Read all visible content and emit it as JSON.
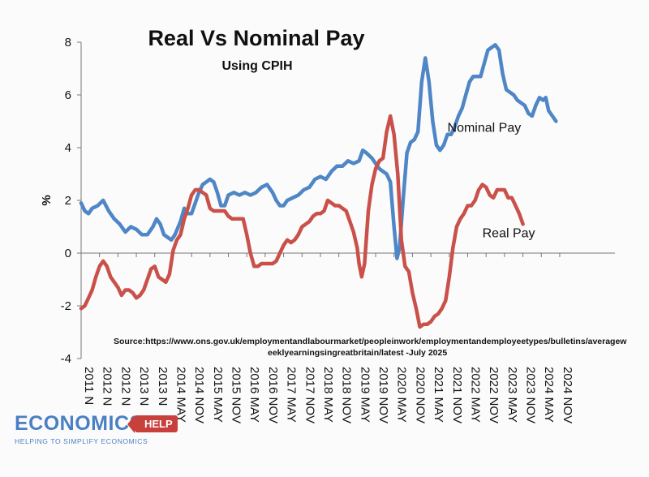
{
  "chart_data": {
    "type": "line",
    "title": "Real Vs Nominal Pay",
    "subtitle": "Using CPIH",
    "ylabel": "%",
    "ylim": [
      -4,
      8
    ],
    "yticks": [
      -4,
      -2,
      0,
      2,
      4,
      6,
      8
    ],
    "xlim": [
      2011.0,
      2025.5
    ],
    "x_tick_labels": [
      {
        "x": 2011.0,
        "label": "2011 N"
      },
      {
        "x": 2011.5,
        "label": "2012 N"
      },
      {
        "x": 2012.0,
        "label": "2012 N"
      },
      {
        "x": 2012.5,
        "label": "2013 N"
      },
      {
        "x": 2013.0,
        "label": "2013 N"
      },
      {
        "x": 2013.5,
        "label": "2014 MAY"
      },
      {
        "x": 2014.0,
        "label": "2014 NOV"
      },
      {
        "x": 2014.5,
        "label": "2015 MAY"
      },
      {
        "x": 2015.0,
        "label": "2015 NOV"
      },
      {
        "x": 2015.5,
        "label": "2016 MAY"
      },
      {
        "x": 2016.0,
        "label": "2016 NOV"
      },
      {
        "x": 2016.5,
        "label": "2017 MAY"
      },
      {
        "x": 2017.0,
        "label": "2017 NOV"
      },
      {
        "x": 2017.5,
        "label": "2018 MAY"
      },
      {
        "x": 2018.0,
        "label": "2018 NOV"
      },
      {
        "x": 2018.5,
        "label": "2019 MAY"
      },
      {
        "x": 2019.0,
        "label": "2019 NOV"
      },
      {
        "x": 2019.5,
        "label": "2020 MAY"
      },
      {
        "x": 2020.0,
        "label": "2020 NOV"
      },
      {
        "x": 2020.5,
        "label": "2021 MAY"
      },
      {
        "x": 2021.0,
        "label": "2021 NOV"
      },
      {
        "x": 2021.5,
        "label": "2022 MAY"
      },
      {
        "x": 2022.0,
        "label": "2022 NOV"
      },
      {
        "x": 2022.5,
        "label": "2023 MAY"
      },
      {
        "x": 2023.0,
        "label": "2023 NOV"
      },
      {
        "x": 2023.5,
        "label": "2024 MAY"
      },
      {
        "x": 2024.0,
        "label": "2024 NOV"
      }
    ],
    "series": [
      {
        "name": "Nominal Pay",
        "color": "#4f86c6",
        "points": [
          [
            2011.0,
            1.9
          ],
          [
            2011.1,
            1.6
          ],
          [
            2011.2,
            1.5
          ],
          [
            2011.3,
            1.7
          ],
          [
            2011.45,
            1.8
          ],
          [
            2011.6,
            2.0
          ],
          [
            2011.75,
            1.6
          ],
          [
            2011.9,
            1.3
          ],
          [
            2012.05,
            1.1
          ],
          [
            2012.2,
            0.8
          ],
          [
            2012.35,
            1.0
          ],
          [
            2012.5,
            0.9
          ],
          [
            2012.65,
            0.7
          ],
          [
            2012.8,
            0.7
          ],
          [
            2012.95,
            1.0
          ],
          [
            2013.05,
            1.3
          ],
          [
            2013.15,
            1.1
          ],
          [
            2013.25,
            0.7
          ],
          [
            2013.35,
            0.6
          ],
          [
            2013.45,
            0.5
          ],
          [
            2013.55,
            0.7
          ],
          [
            2013.7,
            1.2
          ],
          [
            2013.8,
            1.7
          ],
          [
            2013.9,
            1.5
          ],
          [
            2014.0,
            1.5
          ],
          [
            2014.1,
            1.9
          ],
          [
            2014.2,
            2.3
          ],
          [
            2014.3,
            2.6
          ],
          [
            2014.4,
            2.7
          ],
          [
            2014.5,
            2.8
          ],
          [
            2014.6,
            2.7
          ],
          [
            2014.7,
            2.3
          ],
          [
            2014.8,
            1.8
          ],
          [
            2014.9,
            1.8
          ],
          [
            2015.0,
            2.2
          ],
          [
            2015.15,
            2.3
          ],
          [
            2015.3,
            2.2
          ],
          [
            2015.45,
            2.3
          ],
          [
            2015.6,
            2.2
          ],
          [
            2015.75,
            2.3
          ],
          [
            2015.9,
            2.5
          ],
          [
            2016.05,
            2.6
          ],
          [
            2016.2,
            2.3
          ],
          [
            2016.3,
            2.0
          ],
          [
            2016.4,
            1.8
          ],
          [
            2016.5,
            1.8
          ],
          [
            2016.6,
            2.0
          ],
          [
            2016.75,
            2.1
          ],
          [
            2016.9,
            2.2
          ],
          [
            2017.05,
            2.4
          ],
          [
            2017.2,
            2.5
          ],
          [
            2017.35,
            2.8
          ],
          [
            2017.5,
            2.9
          ],
          [
            2017.65,
            2.8
          ],
          [
            2017.8,
            3.1
          ],
          [
            2017.95,
            3.3
          ],
          [
            2018.1,
            3.3
          ],
          [
            2018.25,
            3.5
          ],
          [
            2018.4,
            3.4
          ],
          [
            2018.55,
            3.5
          ],
          [
            2018.65,
            3.9
          ],
          [
            2018.75,
            3.8
          ],
          [
            2018.9,
            3.6
          ],
          [
            2019.0,
            3.4
          ],
          [
            2019.1,
            3.2
          ],
          [
            2019.2,
            3.1
          ],
          [
            2019.3,
            3.0
          ],
          [
            2019.4,
            2.7
          ],
          [
            2019.5,
            1.0
          ],
          [
            2019.58,
            -0.2
          ],
          [
            2019.65,
            0.2
          ],
          [
            2019.75,
            2.1
          ],
          [
            2019.85,
            3.8
          ],
          [
            2019.95,
            4.2
          ],
          [
            2020.05,
            4.3
          ],
          [
            2020.15,
            4.6
          ],
          [
            2020.25,
            6.5
          ],
          [
            2020.35,
            7.4
          ],
          [
            2020.45,
            6.5
          ],
          [
            2020.55,
            5.0
          ],
          [
            2020.65,
            4.1
          ],
          [
            2020.75,
            3.9
          ],
          [
            2020.85,
            4.1
          ],
          [
            2020.95,
            4.5
          ],
          [
            2021.05,
            4.5
          ],
          [
            2021.15,
            4.8
          ],
          [
            2021.25,
            5.2
          ],
          [
            2021.35,
            5.5
          ],
          [
            2021.45,
            6.0
          ],
          [
            2021.55,
            6.5
          ],
          [
            2021.65,
            6.7
          ],
          [
            2021.75,
            6.7
          ],
          [
            2021.85,
            6.7
          ],
          [
            2021.95,
            7.2
          ],
          [
            2022.05,
            7.7
          ],
          [
            2022.15,
            7.8
          ],
          [
            2022.25,
            7.9
          ],
          [
            2022.35,
            7.7
          ],
          [
            2022.45,
            6.8
          ],
          [
            2022.55,
            6.2
          ],
          [
            2022.65,
            6.1
          ],
          [
            2022.75,
            6.0
          ],
          [
            2022.85,
            5.8
          ],
          [
            2022.95,
            5.7
          ],
          [
            2023.05,
            5.6
          ],
          [
            2023.15,
            5.3
          ],
          [
            2023.25,
            5.2
          ],
          [
            2023.35,
            5.6
          ],
          [
            2023.45,
            5.9
          ],
          [
            2023.55,
            5.8
          ],
          [
            2023.62,
            5.9
          ],
          [
            2023.7,
            5.4
          ],
          [
            2023.8,
            5.2
          ],
          [
            2023.9,
            5.0
          ]
        ]
      },
      {
        "name": "Real Pay",
        "color": "#c9514a",
        "points": [
          [
            2011.0,
            -2.1
          ],
          [
            2011.1,
            -2.0
          ],
          [
            2011.2,
            -1.7
          ],
          [
            2011.3,
            -1.4
          ],
          [
            2011.4,
            -0.9
          ],
          [
            2011.5,
            -0.5
          ],
          [
            2011.6,
            -0.3
          ],
          [
            2011.7,
            -0.5
          ],
          [
            2011.8,
            -0.9
          ],
          [
            2011.9,
            -1.1
          ],
          [
            2012.0,
            -1.3
          ],
          [
            2012.1,
            -1.6
          ],
          [
            2012.2,
            -1.4
          ],
          [
            2012.3,
            -1.4
          ],
          [
            2012.4,
            -1.5
          ],
          [
            2012.5,
            -1.7
          ],
          [
            2012.6,
            -1.6
          ],
          [
            2012.7,
            -1.4
          ],
          [
            2012.8,
            -1.0
          ],
          [
            2012.9,
            -0.6
          ],
          [
            2013.0,
            -0.5
          ],
          [
            2013.1,
            -0.9
          ],
          [
            2013.2,
            -1.0
          ],
          [
            2013.3,
            -1.1
          ],
          [
            2013.4,
            -0.8
          ],
          [
            2013.5,
            0.1
          ],
          [
            2013.6,
            0.5
          ],
          [
            2013.7,
            0.7
          ],
          [
            2013.8,
            1.3
          ],
          [
            2013.9,
            1.7
          ],
          [
            2014.0,
            2.2
          ],
          [
            2014.1,
            2.4
          ],
          [
            2014.2,
            2.4
          ],
          [
            2014.3,
            2.3
          ],
          [
            2014.4,
            2.2
          ],
          [
            2014.5,
            1.7
          ],
          [
            2014.6,
            1.6
          ],
          [
            2014.7,
            1.6
          ],
          [
            2014.8,
            1.6
          ],
          [
            2014.9,
            1.6
          ],
          [
            2015.0,
            1.4
          ],
          [
            2015.1,
            1.3
          ],
          [
            2015.2,
            1.3
          ],
          [
            2015.3,
            1.3
          ],
          [
            2015.4,
            1.3
          ],
          [
            2015.5,
            0.7
          ],
          [
            2015.6,
            0.0
          ],
          [
            2015.7,
            -0.5
          ],
          [
            2015.8,
            -0.5
          ],
          [
            2015.9,
            -0.4
          ],
          [
            2016.0,
            -0.4
          ],
          [
            2016.1,
            -0.4
          ],
          [
            2016.2,
            -0.4
          ],
          [
            2016.3,
            -0.3
          ],
          [
            2016.4,
            0.0
          ],
          [
            2016.5,
            0.3
          ],
          [
            2016.6,
            0.5
          ],
          [
            2016.7,
            0.4
          ],
          [
            2016.8,
            0.5
          ],
          [
            2016.9,
            0.7
          ],
          [
            2017.0,
            1.0
          ],
          [
            2017.1,
            1.1
          ],
          [
            2017.2,
            1.2
          ],
          [
            2017.3,
            1.4
          ],
          [
            2017.4,
            1.5
          ],
          [
            2017.5,
            1.5
          ],
          [
            2017.6,
            1.6
          ],
          [
            2017.7,
            2.0
          ],
          [
            2017.8,
            1.9
          ],
          [
            2017.9,
            1.8
          ],
          [
            2018.0,
            1.8
          ],
          [
            2018.1,
            1.7
          ],
          [
            2018.2,
            1.6
          ],
          [
            2018.3,
            1.2
          ],
          [
            2018.4,
            0.8
          ],
          [
            2018.5,
            0.2
          ],
          [
            2018.55,
            -0.4
          ],
          [
            2018.62,
            -0.9
          ],
          [
            2018.7,
            -0.4
          ],
          [
            2018.8,
            1.6
          ],
          [
            2018.9,
            2.6
          ],
          [
            2019.0,
            3.2
          ],
          [
            2019.1,
            3.5
          ],
          [
            2019.2,
            3.6
          ],
          [
            2019.3,
            4.6
          ],
          [
            2019.4,
            5.2
          ],
          [
            2019.5,
            4.5
          ],
          [
            2019.6,
            3.0
          ],
          [
            2019.7,
            0.5
          ],
          [
            2019.8,
            -0.5
          ],
          [
            2019.9,
            -0.7
          ],
          [
            2020.0,
            -1.5
          ],
          [
            2020.1,
            -2.1
          ],
          [
            2020.2,
            -2.8
          ],
          [
            2020.3,
            -2.7
          ],
          [
            2020.4,
            -2.7
          ],
          [
            2020.5,
            -2.6
          ],
          [
            2020.6,
            -2.4
          ],
          [
            2020.7,
            -2.3
          ],
          [
            2020.8,
            -2.1
          ],
          [
            2020.9,
            -1.8
          ],
          [
            2021.0,
            -0.9
          ],
          [
            2021.1,
            0.2
          ],
          [
            2021.2,
            1.0
          ],
          [
            2021.3,
            1.3
          ],
          [
            2021.4,
            1.5
          ],
          [
            2021.5,
            1.8
          ],
          [
            2021.6,
            1.8
          ],
          [
            2021.7,
            2.0
          ],
          [
            2021.8,
            2.4
          ],
          [
            2021.9,
            2.6
          ],
          [
            2022.0,
            2.5
          ],
          [
            2022.1,
            2.2
          ],
          [
            2022.2,
            2.1
          ],
          [
            2022.3,
            2.4
          ],
          [
            2022.4,
            2.4
          ],
          [
            2022.5,
            2.4
          ],
          [
            2022.6,
            2.1
          ],
          [
            2022.7,
            2.1
          ],
          [
            2022.8,
            1.8
          ],
          [
            2022.9,
            1.5
          ],
          [
            2023.0,
            1.1
          ]
        ]
      }
    ],
    "annotations": [
      {
        "text": "Nominal Pay",
        "x": 2020.95,
        "y": 4.6
      },
      {
        "text": "Real Pay",
        "x": 2021.9,
        "y": 0.6
      }
    ],
    "source": {
      "line1": "Source:https://www.ons.gov.uk/employmentandlabourmarket/peopleinwork/employmentandemployeetypes/bulletins/averagew",
      "line2": "eeklyearningsingreatbritain/latest -July 2025"
    },
    "grid": false,
    "legend": "none"
  },
  "logo": {
    "name": "ECONOMICS",
    "badge": "HELP",
    "tagline": "HELPING TO SIMPLIFY ECONOMICS"
  }
}
